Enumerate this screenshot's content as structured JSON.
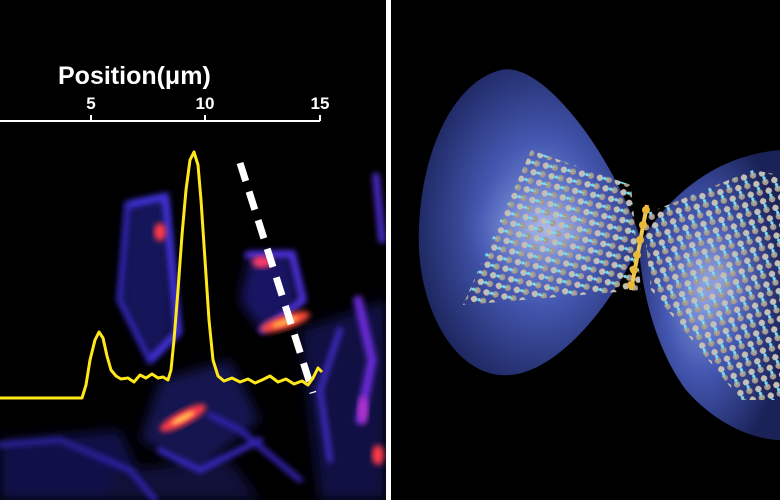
{
  "left_panel": {
    "axis_title": "Position(μm)",
    "ticks": [
      {
        "label": "5",
        "value": 5
      },
      {
        "label": "10",
        "value": 10
      },
      {
        "label": "15",
        "value": 15
      }
    ],
    "colors": {
      "profile": "#ffe81a",
      "background": "#000000",
      "flake_glow": "#3a2bd8",
      "hotspot": "#ff3a4a",
      "dashed_line": "#ffffff"
    }
  },
  "right_panel": {
    "colors": {
      "lobe": "#3a4fa8",
      "atoms_dark": "#a89a8c",
      "atoms_light": "#6fd8f0",
      "junction": "#e8b838"
    }
  }
}
